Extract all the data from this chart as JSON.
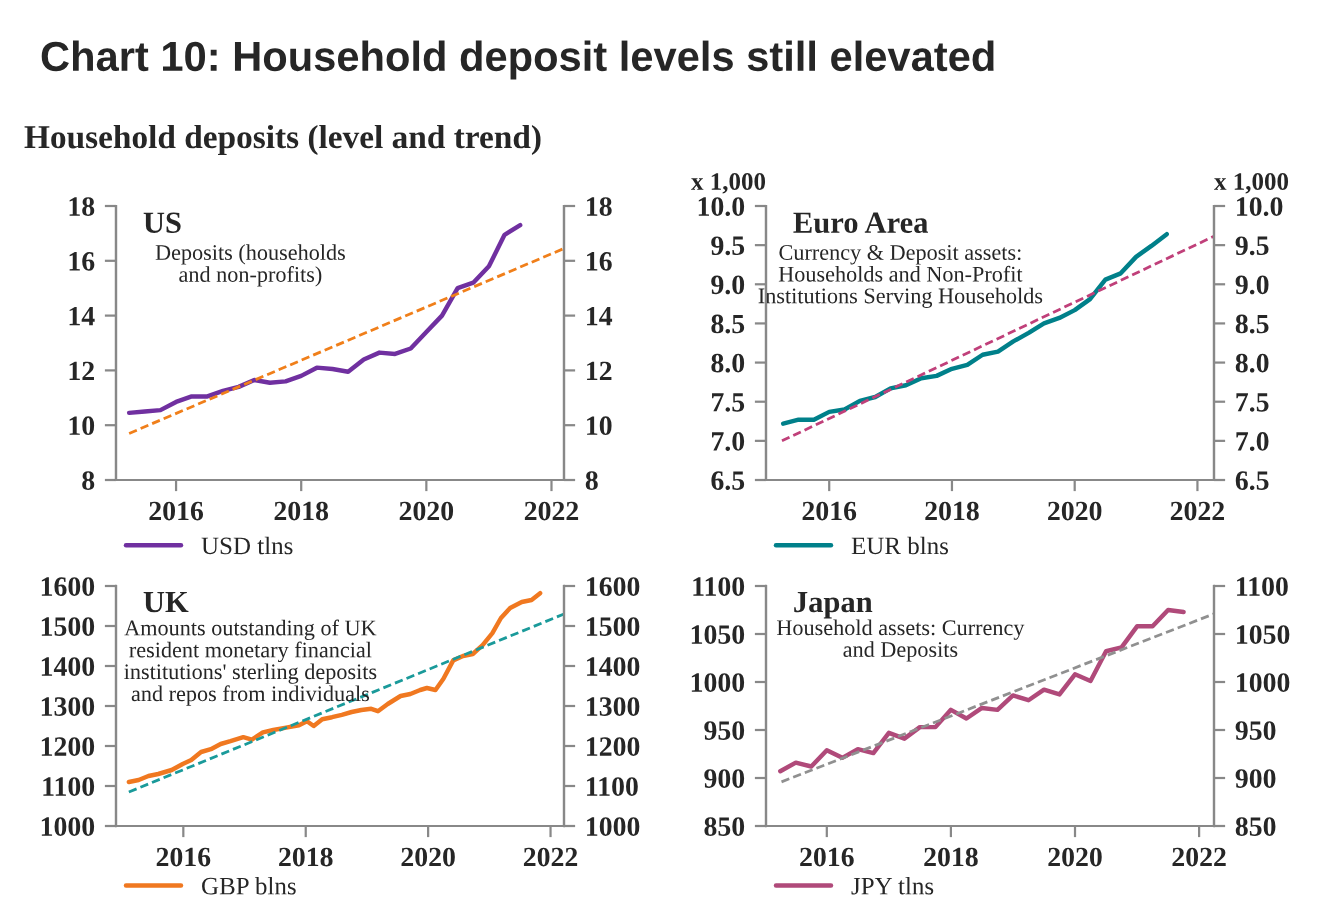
{
  "chart_data": [
    {
      "type": "line",
      "title": "Chart 10: Household deposit levels still elevated",
      "subtitle": "Household deposits (level and trend)",
      "annotations": [
        "US",
        "Deposits (households\nand non-profits)"
      ],
      "xlim": [
        2015.04,
        2022.2
      ],
      "xticks": [
        2016,
        2018,
        2020,
        2022
      ],
      "ylim": [
        8,
        18
      ],
      "yticks": [
        8,
        10,
        12,
        14,
        16,
        18
      ],
      "y2lim": [
        8,
        18
      ],
      "y2ticks": [
        8,
        10,
        12,
        14,
        16,
        18
      ],
      "legend": "bottom",
      "grid": false,
      "series": [
        {
          "name": "USD tlns",
          "color": "#7030a0",
          "line_style": "solid",
          "x": [
            2015.25,
            2015.5,
            2015.75,
            2016.0,
            2016.25,
            2016.5,
            2016.75,
            2017.0,
            2017.25,
            2017.5,
            2017.75,
            2018.0,
            2018.25,
            2018.5,
            2018.75,
            2019.0,
            2019.25,
            2019.5,
            2019.75,
            2020.0,
            2020.25,
            2020.5,
            2020.75,
            2021.0,
            2021.25,
            2021.5
          ],
          "values": [
            10.45,
            10.5,
            10.55,
            10.85,
            11.05,
            11.05,
            11.25,
            11.4,
            11.65,
            11.55,
            11.6,
            11.8,
            12.1,
            12.05,
            11.95,
            12.4,
            12.65,
            12.6,
            12.8,
            13.4,
            14.0,
            15.0,
            15.2,
            15.8,
            16.95,
            17.3
          ]
        },
        {
          "color": "#f07f1a",
          "line_style": "dashed",
          "x": [
            2015.25,
            2022.2
          ],
          "values": [
            9.7,
            16.45
          ]
        }
      ]
    },
    {
      "type": "line",
      "annotations": [
        "Euro Area",
        "Currency & Deposit assets:\nHouseholds and Non-Profit\nInstitutions Serving Households",
        "x 1,000",
        "x 1,000"
      ],
      "xlim": [
        2014.97,
        2022.27
      ],
      "xticks": [
        2016,
        2018,
        2020,
        2022
      ],
      "ylim": [
        6.5,
        10.0
      ],
      "yticks": [
        {
          "value": 6.5,
          "label": "6.5"
        },
        {
          "value": 7.0,
          "label": "7.0"
        },
        {
          "value": 7.5,
          "label": "7.5"
        },
        {
          "value": 8.0,
          "label": "8.0"
        },
        {
          "value": 8.5,
          "label": "8.5"
        },
        {
          "value": 9.0,
          "label": "9.0"
        },
        {
          "value": 9.5,
          "label": "9.5"
        },
        {
          "value": 10.0,
          "label": "10.0"
        }
      ],
      "y2lim": [
        6.5,
        10.0
      ],
      "y2ticks": [
        {
          "value": 6.5,
          "label": "6.5"
        },
        {
          "value": 7.0,
          "label": "7.0"
        },
        {
          "value": 7.5,
          "label": "7.5"
        },
        {
          "value": 8.0,
          "label": "8.0"
        },
        {
          "value": 8.5,
          "label": "8.5"
        },
        {
          "value": 9.0,
          "label": "9.0"
        },
        {
          "value": 9.5,
          "label": "9.5"
        },
        {
          "value": 10.0,
          "label": "10.0"
        }
      ],
      "legend": "bottom",
      "grid": false,
      "series": [
        {
          "name": "EUR blns",
          "color": "#00808a",
          "line_style": "solid",
          "x": [
            2015.25,
            2015.5,
            2015.75,
            2016.0,
            2016.25,
            2016.5,
            2016.75,
            2017.0,
            2017.25,
            2017.5,
            2017.75,
            2018.0,
            2018.25,
            2018.5,
            2018.75,
            2019.0,
            2019.25,
            2019.5,
            2019.75,
            2020.0,
            2020.25,
            2020.5,
            2020.75,
            2021.0,
            2021.25,
            2021.5
          ],
          "values": [
            7.22,
            7.27,
            7.27,
            7.37,
            7.4,
            7.51,
            7.56,
            7.67,
            7.71,
            7.8,
            7.83,
            7.92,
            7.97,
            8.1,
            8.14,
            8.27,
            8.38,
            8.5,
            8.57,
            8.67,
            8.81,
            9.06,
            9.14,
            9.35,
            9.49,
            9.64
          ]
        },
        {
          "color": "#c0407a",
          "line_style": "dashed",
          "x": [
            2015.23,
            2022.26
          ],
          "values": [
            7.0,
            9.61
          ]
        }
      ]
    },
    {
      "type": "line",
      "annotations": [
        "UK",
        "Amounts outstanding of UK\nresident monetary financial\ninstitutions' sterling deposits\nand repos from individuals"
      ],
      "xlim": [
        2014.9,
        2022.22
      ],
      "xticks": [
        2016,
        2018,
        2020,
        2022
      ],
      "ylim": [
        1000,
        1600
      ],
      "yticks": [
        1000,
        1100,
        1200,
        1300,
        1400,
        1500,
        1600
      ],
      "y2lim": [
        1000,
        1600
      ],
      "y2ticks": [
        1000,
        1100,
        1200,
        1300,
        1400,
        1500,
        1600
      ],
      "legend": "bottom",
      "grid": false,
      "series": [
        {
          "name": "GBP blns",
          "color": "#f07820",
          "line_style": "solid",
          "x": [
            2015.11,
            2015.27,
            2015.43,
            2015.59,
            2015.81,
            2015.99,
            2016.13,
            2016.29,
            2016.45,
            2016.61,
            2016.77,
            2016.98,
            2017.12,
            2017.3,
            2017.47,
            2017.68,
            2017.89,
            2018.02,
            2018.13,
            2018.27,
            2018.43,
            2018.59,
            2018.75,
            2018.91,
            2019.07,
            2019.18,
            2019.34,
            2019.55,
            2019.71,
            2019.87,
            2019.98,
            2020.12,
            2020.25,
            2020.41,
            2020.57,
            2020.73,
            2020.89,
            2021.05,
            2021.19,
            2021.34,
            2021.53,
            2021.69,
            2021.83
          ],
          "values": [
            1110,
            1115,
            1125,
            1130,
            1140,
            1155,
            1165,
            1185,
            1192,
            1205,
            1212,
            1222,
            1216,
            1234,
            1240,
            1246,
            1252,
            1262,
            1250,
            1267,
            1272,
            1278,
            1285,
            1290,
            1293,
            1287,
            1305,
            1325,
            1330,
            1340,
            1345,
            1340,
            1368,
            1414,
            1425,
            1430,
            1452,
            1482,
            1520,
            1545,
            1560,
            1565,
            1582
          ]
        },
        {
          "color": "#1a9a9a",
          "line_style": "dashed",
          "x": [
            2015.11,
            2022.22
          ],
          "values": [
            1085,
            1530
          ]
        }
      ]
    },
    {
      "type": "line",
      "annotations": [
        "Japan",
        "Household assets: Currency\nand Deposits"
      ],
      "xlim": [
        2015.02,
        2022.24
      ],
      "xticks": [
        2016,
        2018,
        2020,
        2022
      ],
      "ylim": [
        850,
        1100
      ],
      "yticks": [
        850,
        900,
        950,
        1000,
        1050,
        1100
      ],
      "y2lim": [
        850,
        1100
      ],
      "y2ticks": [
        850,
        900,
        950,
        1000,
        1050,
        1100
      ],
      "legend": "bottom",
      "grid": false,
      "series": [
        {
          "name": "JPY tlns",
          "color": "#b04a7a",
          "line_style": "solid",
          "x": [
            2015.25,
            2015.5,
            2015.75,
            2016.0,
            2016.25,
            2016.5,
            2016.75,
            2017.0,
            2017.25,
            2017.5,
            2017.75,
            2018.0,
            2018.25,
            2018.5,
            2018.75,
            2019.0,
            2019.25,
            2019.5,
            2019.75,
            2020.0,
            2020.25,
            2020.5,
            2020.75,
            2021.0,
            2021.25,
            2021.5,
            2021.75
          ],
          "values": [
            907,
            916,
            912,
            929,
            921,
            930,
            926,
            947,
            941,
            953,
            953,
            971,
            962,
            973,
            971,
            986,
            981,
            992,
            987,
            1008,
            1001,
            1032,
            1036,
            1058,
            1058,
            1075,
            1073
          ]
        },
        {
          "color": "#909090",
          "line_style": "dashed",
          "x": [
            2015.27,
            2022.24
          ],
          "values": [
            896,
            1071
          ]
        }
      ]
    }
  ]
}
